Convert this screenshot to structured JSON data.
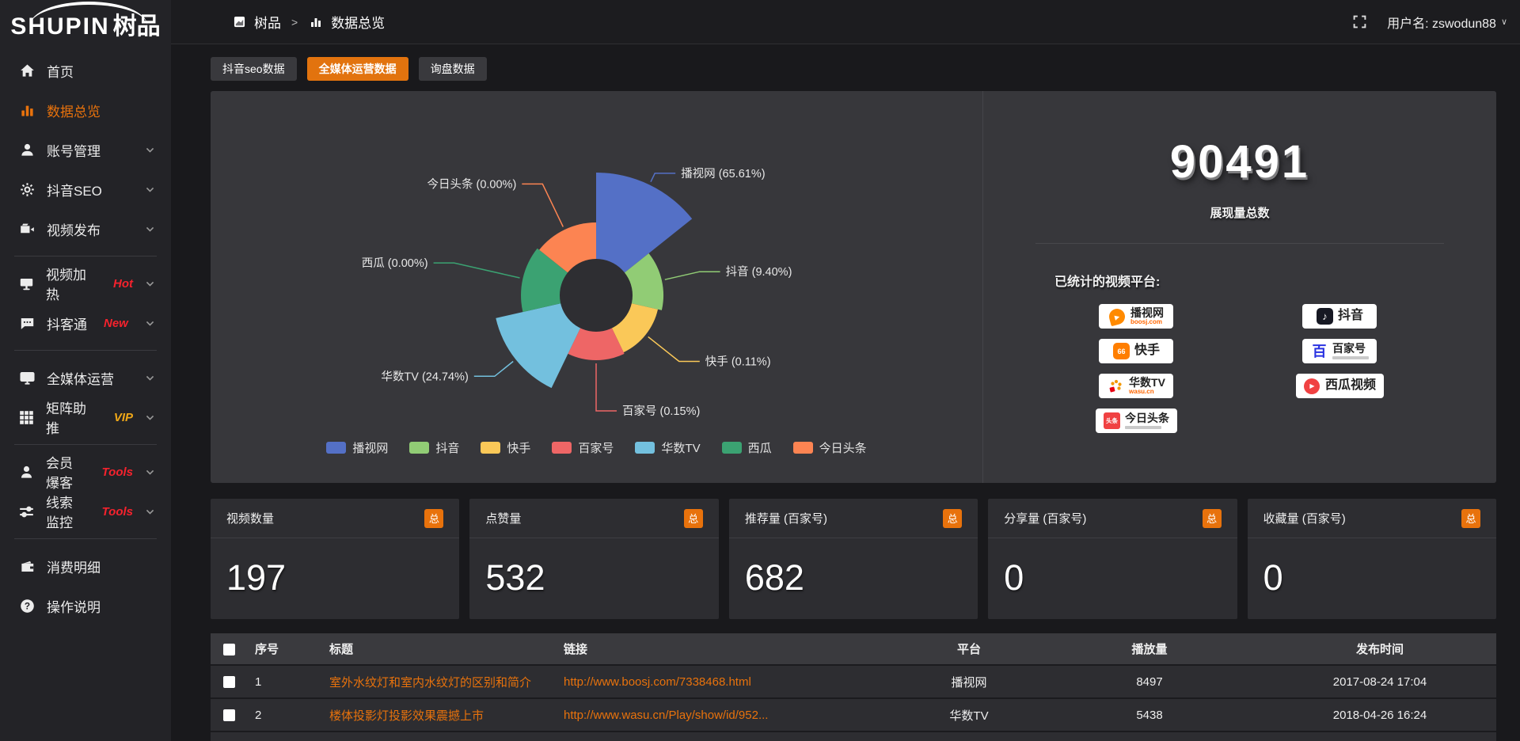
{
  "accent": "#e8720c",
  "logo": {
    "brand": "SHUPIN",
    "cn": "树品"
  },
  "sidebar": {
    "items": [
      {
        "label": "首页",
        "icon": "home-icon",
        "active": false,
        "chevron": false
      },
      {
        "label": "数据总览",
        "icon": "bar-chart-icon",
        "active": true,
        "chevron": false
      },
      {
        "label": "账号管理",
        "icon": "user-icon",
        "active": false,
        "chevron": true
      },
      {
        "label": "抖音SEO",
        "icon": "gear-icon",
        "active": false,
        "chevron": true
      },
      {
        "label": "视频发布",
        "icon": "video-publish-icon",
        "active": false,
        "chevron": true
      },
      {
        "divider": true
      },
      {
        "label": "视频加热",
        "icon": "screen-icon",
        "active": false,
        "chevron": true,
        "badge": "Hot",
        "badge_color": "#f5222d"
      },
      {
        "label": "抖客通",
        "icon": "chat-icon",
        "active": false,
        "chevron": true,
        "badge": "New",
        "badge_color": "#f5222d"
      },
      {
        "divider": true
      },
      {
        "label": "全媒体运营",
        "icon": "monitor-icon",
        "active": false,
        "chevron": true
      },
      {
        "label": "矩阵助推",
        "icon": "grid-icon",
        "active": false,
        "chevron": true,
        "badge": "VIP",
        "badge_color": "#f0a818"
      },
      {
        "divider": true
      },
      {
        "label": "会员爆客",
        "icon": "member-icon",
        "active": false,
        "chevron": true,
        "badge": "Tools",
        "badge_color": "#f5222d"
      },
      {
        "label": "线索监控",
        "icon": "sliders-icon",
        "active": false,
        "chevron": true,
        "badge": "Tools",
        "badge_color": "#f5222d"
      },
      {
        "divider": true
      },
      {
        "label": "消费明细",
        "icon": "wallet-icon",
        "active": false,
        "chevron": false
      },
      {
        "label": "操作说明",
        "icon": "question-icon",
        "active": false,
        "chevron": false
      }
    ]
  },
  "header": {
    "breadcrumb_root": "树品",
    "breadcrumb_sep": ">",
    "breadcrumb_page": "数据总览",
    "username": "用户名: zswodun88"
  },
  "tabs": [
    {
      "label": "抖音seo数据",
      "active": false
    },
    {
      "label": "全媒体运营数据",
      "active": true
    },
    {
      "label": "询盘数据",
      "active": false
    }
  ],
  "chart_data": {
    "type": "pie",
    "subtype": "nightingale-rose",
    "categories": [
      "播视网",
      "抖音",
      "快手",
      "百家号",
      "华数TV",
      "西瓜",
      "今日头条"
    ],
    "values": [
      65.61,
      9.4,
      0.11,
      0.15,
      24.74,
      0.0,
      0.0
    ],
    "unit": "percent",
    "colors": [
      "#5470c6",
      "#91cc75",
      "#fac858",
      "#ee6666",
      "#73c0de",
      "#3ba272",
      "#fc8452"
    ],
    "legend_position": "bottom",
    "label_format": "{name} ({value}%)"
  },
  "summary": {
    "total": "90491",
    "total_label": "展现量总数",
    "platforms_label": "已统计的视频平台:",
    "platforms": [
      {
        "name": "播视网",
        "subtitle": "boosj.com",
        "icon": "boosj-logo",
        "col": 1
      },
      {
        "name": "快手",
        "icon": "kuaishou-logo",
        "col": 1,
        "big": true
      },
      {
        "name": "华数TV",
        "subtitle": "wasu.cn",
        "icon": "wasu-logo",
        "col": 1
      },
      {
        "name": "今日头条",
        "icon": "toutiao-logo",
        "col": 1,
        "graybar": true
      },
      {
        "name": "抖音",
        "icon": "douyin-logo",
        "col": 2,
        "big": true
      },
      {
        "name": "百家号",
        "icon": "baijiahao-logo",
        "col": 2,
        "graybar": true
      },
      {
        "name": "西瓜视频",
        "icon": "xigua-logo",
        "col": 2,
        "big": true
      }
    ]
  },
  "stat_cards": [
    {
      "label": "视频数量",
      "badge": "总",
      "value": "197"
    },
    {
      "label": "点赞量",
      "badge": "总",
      "value": "532"
    },
    {
      "label": "推荐量 (百家号)",
      "badge": "总",
      "value": "682"
    },
    {
      "label": "分享量 (百家号)",
      "badge": "总",
      "value": "0"
    },
    {
      "label": "收藏量 (百家号)",
      "badge": "总",
      "value": "0"
    }
  ],
  "table": {
    "headers": [
      "序号",
      "标题",
      "链接",
      "平台",
      "播放量",
      "发布时间"
    ],
    "rows": [
      {
        "no": "1",
        "title": "室外水纹灯和室内水纹灯的区别和简介",
        "link": "http://www.boosj.com/7338468.html",
        "platform": "播视网",
        "plays": "8497",
        "time": "2017-08-24 17:04"
      },
      {
        "no": "2",
        "title": "楼体投影灯投影效果震撼上市",
        "link": "http://www.wasu.cn/Play/show/id/952...",
        "platform": "华数TV",
        "plays": "5438",
        "time": "2018-04-26 16:24"
      }
    ]
  }
}
